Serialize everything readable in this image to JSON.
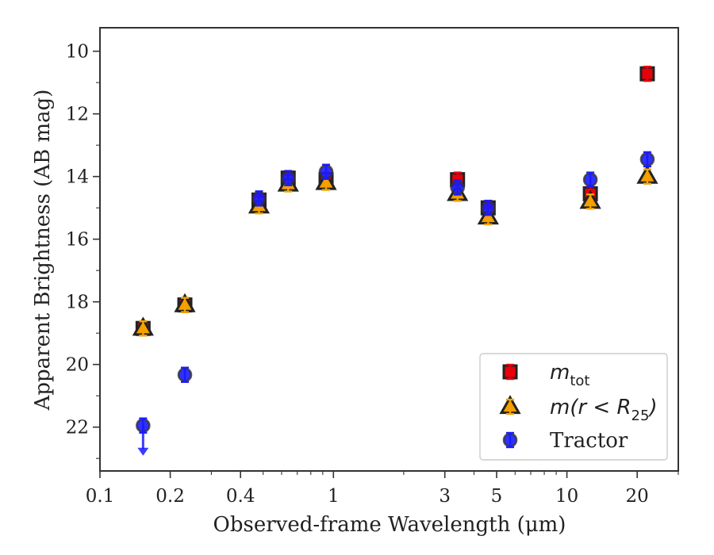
{
  "chart_data": {
    "type": "scatter",
    "xlabel": "Observed-frame Wavelength (μm)",
    "ylabel": "Apparent Brightness (AB mag)",
    "x_scale": "log",
    "xlim": [
      0.1,
      30
    ],
    "ylim": [
      23.4,
      9.25
    ],
    "y_inverted": true,
    "x_ticks": [
      {
        "value": 0.1,
        "label": "0.1"
      },
      {
        "value": 0.2,
        "label": "0.2"
      },
      {
        "value": 0.4,
        "label": "0.4"
      },
      {
        "value": 1,
        "label": "1"
      },
      {
        "value": 3,
        "label": "3"
      },
      {
        "value": 5,
        "label": "5"
      },
      {
        "value": 10,
        "label": "10"
      },
      {
        "value": 20,
        "label": "20"
      }
    ],
    "y_ticks": [
      {
        "value": 10,
        "label": "10"
      },
      {
        "value": 12,
        "label": "12"
      },
      {
        "value": 14,
        "label": "14"
      },
      {
        "value": 16,
        "label": "16"
      },
      {
        "value": 18,
        "label": "18"
      },
      {
        "value": 20,
        "label": "20"
      },
      {
        "value": 22,
        "label": "22"
      }
    ],
    "grid": false,
    "legend_position": "bottom-right",
    "series": [
      {
        "name": "m_tot",
        "marker": "square",
        "fill": "#e8000b",
        "edge": "#222222",
        "errorbar_color": "#e8000b",
        "x": [
          0.153,
          0.231,
          0.48,
          0.64,
          0.93,
          3.4,
          4.6,
          12.6,
          22.1
        ],
        "y": [
          18.85,
          18.1,
          14.75,
          14.05,
          14.1,
          14.1,
          15.0,
          14.55,
          10.72
        ]
      },
      {
        "name": "m(r<R25)",
        "marker": "triangle",
        "fill": "#f59e00",
        "edge": "#222222",
        "errorbar_color": "#f5a300",
        "x": [
          0.153,
          0.231,
          0.48,
          0.64,
          0.93,
          3.4,
          4.6,
          12.6,
          22.1
        ],
        "y": [
          18.85,
          18.1,
          14.95,
          14.25,
          14.2,
          14.55,
          15.3,
          14.8,
          14.0
        ]
      },
      {
        "name": "Tractor",
        "marker": "circle",
        "fill": "#1a1aff",
        "edge": "#333333",
        "errorbar_color": "#1a1aff",
        "x": [
          0.153,
          0.231,
          0.48,
          0.64,
          0.93,
          3.4,
          4.6,
          12.6,
          22.1
        ],
        "y": [
          21.95,
          20.33,
          14.7,
          14.05,
          13.85,
          14.35,
          15.0,
          14.1,
          13.45
        ],
        "upper_limit_index": 0
      }
    ]
  },
  "legend": {
    "entries": [
      {
        "label_main": "m",
        "label_sub": "tot",
        "label_tail": ""
      },
      {
        "label_main": "m(r < R",
        "label_sub": "25",
        "label_tail": ")"
      },
      {
        "label_main": "Tractor",
        "label_sub": "",
        "label_tail": ""
      }
    ]
  }
}
